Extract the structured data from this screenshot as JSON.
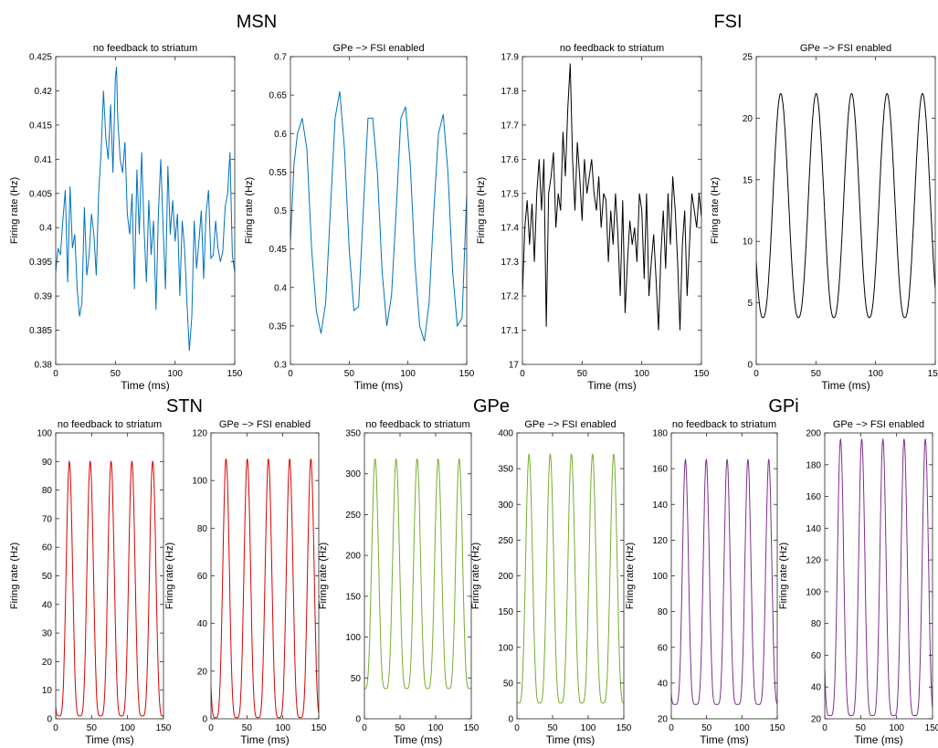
{
  "figure": {
    "group_titles": [
      "MSN",
      "FSI",
      "STN",
      "GPe",
      "GPi"
    ]
  },
  "chart_data": [
    {
      "group": "MSN",
      "type": "line",
      "title": "no feedback to striatum",
      "xlabel": "Time (ms)",
      "ylabel": "Firing rate (Hz)",
      "xlim": [
        0,
        150
      ],
      "ylim": [
        0.38,
        0.425
      ],
      "xticks": [
        "0",
        "50",
        "100",
        "150"
      ],
      "yticks": [
        "0.38",
        "0.385",
        "0.39",
        "0.395",
        "0.4",
        "0.405",
        "0.41",
        "0.415",
        "0.42",
        "0.425"
      ],
      "color": "#0072BD",
      "series": [
        {
          "x": [
            0,
            2,
            4,
            6,
            8,
            10,
            12,
            14,
            16,
            18,
            20,
            22,
            24,
            26,
            28,
            30,
            32,
            34,
            36,
            38,
            40,
            42,
            44,
            46,
            48,
            50,
            51,
            52,
            54,
            56,
            58,
            60,
            62,
            64,
            66,
            68,
            70,
            72,
            74,
            76,
            78,
            80,
            82,
            84,
            86,
            88,
            90,
            92,
            94,
            96,
            98,
            100,
            102,
            104,
            106,
            108,
            110,
            112,
            114,
            116,
            118,
            120,
            122,
            124,
            126,
            128,
            130,
            132,
            134,
            136,
            138,
            140,
            142,
            144,
            146,
            148,
            150
          ],
          "y": [
            0.3935,
            0.397,
            0.396,
            0.401,
            0.4055,
            0.392,
            0.406,
            0.397,
            0.399,
            0.391,
            0.387,
            0.389,
            0.403,
            0.393,
            0.396,
            0.402,
            0.399,
            0.393,
            0.405,
            0.411,
            0.42,
            0.413,
            0.41,
            0.418,
            0.408,
            0.422,
            0.4235,
            0.416,
            0.41,
            0.408,
            0.4125,
            0.402,
            0.399,
            0.405,
            0.391,
            0.4085,
            0.399,
            0.411,
            0.4,
            0.392,
            0.404,
            0.396,
            0.401,
            0.388,
            0.402,
            0.41,
            0.4,
            0.391,
            0.409,
            0.399,
            0.404,
            0.398,
            0.402,
            0.39,
            0.401,
            0.397,
            0.389,
            0.382,
            0.387,
            0.401,
            0.394,
            0.398,
            0.4025,
            0.3925,
            0.402,
            0.4055,
            0.3955,
            0.396,
            0.401,
            0.397,
            0.395,
            0.3965,
            0.403,
            0.405,
            0.411,
            0.396,
            0.3935
          ]
        }
      ]
    },
    {
      "group": "MSN",
      "type": "line",
      "title": "GPe −> FSI enabled",
      "xlabel": "Time (ms)",
      "ylabel": "Firing rate (Hz)",
      "xlim": [
        0,
        150
      ],
      "ylim": [
        0.3,
        0.7
      ],
      "xticks": [
        "0",
        "50",
        "100",
        "150"
      ],
      "yticks": [
        "0.3",
        "0.35",
        "0.4",
        "0.45",
        "0.5",
        "0.55",
        "0.6",
        "0.65",
        "0.7"
      ],
      "color": "#0072BD",
      "series": [
        {
          "x": [
            0,
            3,
            6,
            10,
            14,
            18,
            22,
            26,
            30,
            34,
            38,
            42,
            46,
            50,
            54,
            58,
            62,
            66,
            70,
            74,
            78,
            82,
            86,
            90,
            94,
            98,
            102,
            106,
            110,
            114,
            118,
            122,
            126,
            130,
            134,
            138,
            142,
            146,
            150
          ],
          "y": [
            0.46,
            0.56,
            0.6,
            0.62,
            0.58,
            0.45,
            0.37,
            0.34,
            0.38,
            0.5,
            0.62,
            0.655,
            0.58,
            0.45,
            0.37,
            0.375,
            0.5,
            0.62,
            0.62,
            0.55,
            0.42,
            0.35,
            0.39,
            0.5,
            0.62,
            0.635,
            0.56,
            0.43,
            0.35,
            0.33,
            0.38,
            0.5,
            0.6,
            0.625,
            0.55,
            0.42,
            0.35,
            0.36,
            0.52
          ]
        }
      ]
    },
    {
      "group": "FSI",
      "type": "line",
      "title": "no feedback to striatum",
      "xlabel": "Time (ms)",
      "ylabel": "Firing rate (Hz)",
      "xlim": [
        0,
        150
      ],
      "ylim": [
        17,
        17.9
      ],
      "xticks": [
        "0",
        "50",
        "100",
        "150"
      ],
      "yticks": [
        "17",
        "17.1",
        "17.2",
        "17.3",
        "17.4",
        "17.5",
        "17.6",
        "17.7",
        "17.8",
        "17.9"
      ],
      "color": "#000000",
      "series": [
        {
          "x": [
            0,
            2,
            4,
            6,
            8,
            10,
            12,
            14,
            16,
            18,
            20,
            22,
            24,
            26,
            28,
            30,
            32,
            34,
            36,
            38,
            40,
            42,
            44,
            46,
            48,
            50,
            52,
            54,
            56,
            58,
            60,
            62,
            64,
            66,
            68,
            70,
            72,
            74,
            76,
            78,
            80,
            82,
            84,
            86,
            88,
            90,
            92,
            94,
            96,
            98,
            100,
            102,
            104,
            106,
            108,
            110,
            112,
            114,
            116,
            118,
            120,
            122,
            124,
            126,
            128,
            130,
            132,
            134,
            136,
            138,
            140,
            142,
            144,
            146,
            148,
            150
          ],
          "y": [
            17.2,
            17.4,
            17.48,
            17.35,
            17.47,
            17.3,
            17.5,
            17.6,
            17.45,
            17.6,
            17.11,
            17.5,
            17.55,
            17.62,
            17.4,
            17.5,
            17.45,
            17.68,
            17.55,
            17.75,
            17.88,
            17.6,
            17.45,
            17.65,
            17.55,
            17.42,
            17.6,
            17.5,
            17.55,
            17.6,
            17.5,
            17.45,
            17.55,
            17.4,
            17.5,
            17.48,
            17.3,
            17.45,
            17.35,
            17.5,
            17.38,
            17.2,
            17.48,
            17.15,
            17.3,
            17.42,
            17.35,
            17.4,
            17.3,
            17.5,
            17.45,
            17.25,
            17.5,
            17.2,
            17.3,
            17.38,
            17.25,
            17.1,
            17.32,
            17.45,
            17.28,
            17.5,
            17.35,
            17.55,
            17.45,
            17.3,
            17.1,
            17.35,
            17.45,
            17.2,
            17.35,
            17.5,
            17.45,
            17.4,
            17.5,
            17.43
          ]
        }
      ]
    },
    {
      "group": "FSI",
      "type": "line",
      "title": "GPe −> FSI enabled",
      "xlabel": "Time (ms)",
      "ylabel": "Firing rate (Hz)",
      "xlim": [
        0,
        150
      ],
      "ylim": [
        0,
        25
      ],
      "xticks": [
        "0",
        "50",
        "100",
        "150"
      ],
      "yticks": [
        "0",
        "5",
        "10",
        "15",
        "20",
        "25"
      ],
      "color": "#000000",
      "wave": {
        "period": 29.7,
        "peak_time": 20.5,
        "min": 3.8,
        "max": 22,
        "sharpness": 1.2
      }
    },
    {
      "group": "STN",
      "type": "line",
      "title": "no feedback to striatum",
      "xlabel": "Time (ms)",
      "ylabel": "Firing rate (Hz)",
      "xlim": [
        0,
        150
      ],
      "ylim": [
        0,
        100
      ],
      "xticks": [
        "0",
        "50",
        "100",
        "150"
      ],
      "yticks": [
        "0",
        "10",
        "20",
        "30",
        "40",
        "50",
        "60",
        "70",
        "80",
        "90",
        "100"
      ],
      "color": "#D90000",
      "wave": {
        "period": 29,
        "peak_time": 19,
        "min": 1,
        "max": 90,
        "sharpness": 2.2
      }
    },
    {
      "group": "STN",
      "type": "line",
      "title": "GPe −> FSI enabled",
      "xlabel": "Time (ms)",
      "ylabel": "Firing rate (Hz)",
      "xlim": [
        0,
        150
      ],
      "ylim": [
        0,
        120
      ],
      "xticks": [
        "0",
        "50",
        "100",
        "150"
      ],
      "yticks": [
        "0",
        "20",
        "40",
        "60",
        "80",
        "100",
        "120"
      ],
      "color": "#D90000",
      "wave": {
        "period": 29.5,
        "peak_time": 21,
        "min": 0.5,
        "max": 109,
        "sharpness": 2.2
      }
    },
    {
      "group": "GPe",
      "type": "line",
      "title": "no feedback to striatum",
      "xlabel": "Time (ms)",
      "ylabel": "Firing rate (Hz)",
      "xlim": [
        0,
        150
      ],
      "ylim": [
        0,
        350
      ],
      "xticks": [
        "0",
        "50",
        "100",
        "150"
      ],
      "yticks": [
        "0",
        "50",
        "100",
        "150",
        "200",
        "250",
        "300",
        "350"
      ],
      "color": "#77AC30",
      "wave": {
        "period": 29.5,
        "peak_time": 15,
        "min": 37,
        "max": 318,
        "sharpness": 2
      }
    },
    {
      "group": "GPe",
      "type": "line",
      "title": "GPe −> FSI enabled",
      "xlabel": "Time (ms)",
      "ylabel": "Firing rate (Hz)",
      "xlim": [
        0,
        150
      ],
      "ylim": [
        0,
        400
      ],
      "xticks": [
        "0",
        "50",
        "100",
        "150"
      ],
      "yticks": [
        "0",
        "50",
        "100",
        "150",
        "200",
        "250",
        "300",
        "350",
        "400"
      ],
      "color": "#77AC30",
      "wave": {
        "period": 29.7,
        "peak_time": 17,
        "min": 22,
        "max": 370,
        "sharpness": 2
      }
    },
    {
      "group": "GPi",
      "type": "line",
      "title": "no feedback to striatum",
      "xlabel": "Time (ms)",
      "ylabel": "Firing rate (Hz)",
      "xlim": [
        0,
        150
      ],
      "ylim": [
        20,
        180
      ],
      "xticks": [
        "0",
        "50",
        "100",
        "150"
      ],
      "yticks": [
        "20",
        "40",
        "60",
        "80",
        "100",
        "120",
        "140",
        "160",
        "180"
      ],
      "color": "#7E2F8E",
      "wave": {
        "period": 29.5,
        "peak_time": 20,
        "min": 28,
        "max": 165,
        "sharpness": 2.5
      }
    },
    {
      "group": "GPi",
      "type": "line",
      "title": "GPe −> FSI enabled",
      "xlabel": "Time (ms)",
      "ylabel": "Firing rate (Hz)",
      "xlim": [
        0,
        150
      ],
      "ylim": [
        20,
        200
      ],
      "xticks": [
        "0",
        "50",
        "100",
        "150"
      ],
      "yticks": [
        "20",
        "40",
        "60",
        "80",
        "100",
        "120",
        "140",
        "160",
        "180",
        "200"
      ],
      "color": "#7E2F8E",
      "wave": {
        "period": 29.5,
        "peak_time": 22,
        "min": 22,
        "max": 196,
        "sharpness": 2.5
      }
    }
  ]
}
